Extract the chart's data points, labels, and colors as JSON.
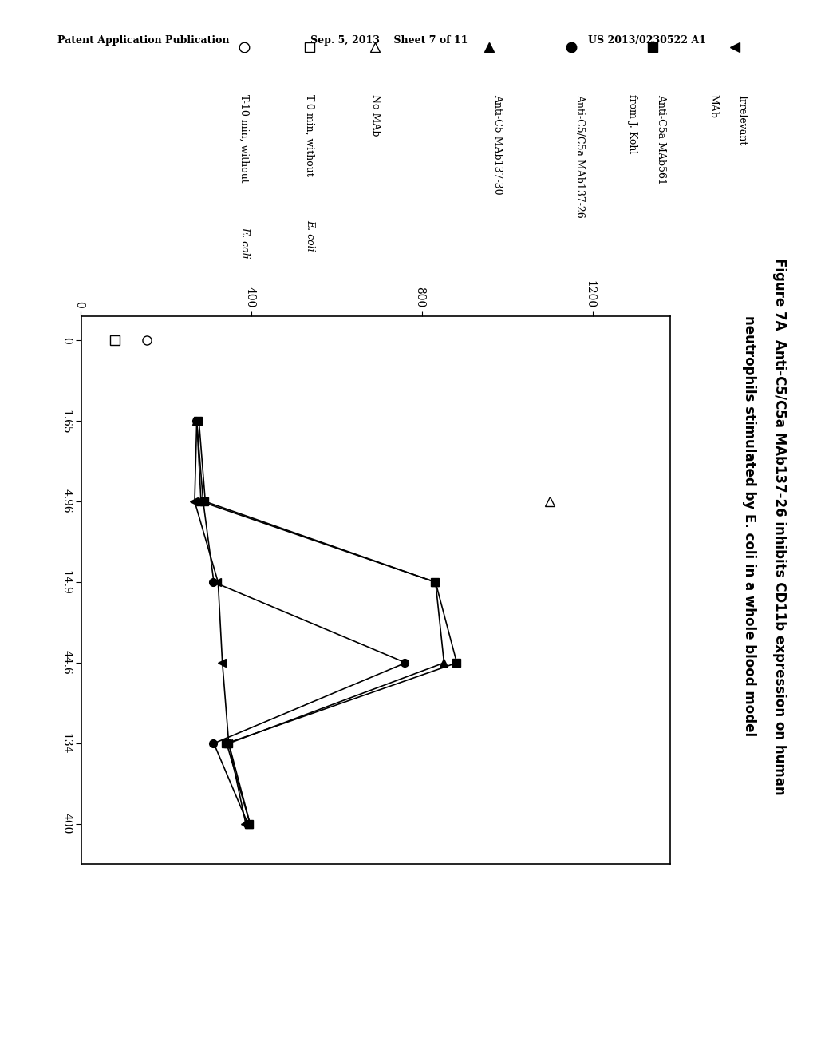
{
  "header_left": "Patent Application Publication",
  "header_mid": "Sep. 5, 2013    Sheet 7 of 11",
  "header_right": "US 2013/0230522 A1",
  "title_line1": "Figure 7A  Anti-C5/C5a MAb137-26 inhibits CD11b expression on human",
  "title_line2": "neutrophils stimulated by E. coli in a whole blood model",
  "x_tick_labels": [
    "0",
    "1.65",
    "4.96",
    "14.9",
    "44.6",
    "134",
    "400"
  ],
  "x_tick_positions": [
    0,
    1,
    2,
    3,
    4,
    5,
    6
  ],
  "y_ticks": [
    0,
    400,
    800,
    1200
  ],
  "y_tick_labels": [
    "0",
    "400",
    "800",
    "1200"
  ],
  "ylim": [
    0,
    1380
  ],
  "xlim": [
    -0.3,
    6.5
  ],
  "series": [
    {
      "name": "Irrelevant MAb",
      "marker": "v",
      "filled": true,
      "x_idx": [
        1,
        2,
        3,
        4,
        5,
        6
      ],
      "y": [
        270,
        265,
        320,
        330,
        345,
        385
      ]
    },
    {
      "name": "Anti-C5a MAb561 from J. Kohl",
      "marker": "s",
      "filled": true,
      "x_idx": [
        1,
        2,
        3,
        4,
        5,
        6
      ],
      "y": [
        275,
        290,
        830,
        880,
        340,
        395
      ]
    },
    {
      "name": "Anti-C5/C5a MAb137-26",
      "marker": "o",
      "filled": true,
      "x_idx": [
        1,
        2,
        3,
        4,
        5,
        6
      ],
      "y": [
        270,
        285,
        310,
        760,
        310,
        390
      ]
    },
    {
      "name": "Anti-C5 MAb137-30",
      "marker": "<",
      "filled": true,
      "x_idx": [
        1,
        2,
        3,
        4,
        5,
        6
      ],
      "y": [
        270,
        280,
        830,
        850,
        345,
        395
      ]
    }
  ],
  "single_points": [
    {
      "name": "No MAb",
      "marker": "<",
      "filled": false,
      "x_idx": 2,
      "y": 1100
    },
    {
      "name": "T-0 min, without E. coli",
      "marker": "s",
      "filled": false,
      "x_idx": 0,
      "y": 80
    },
    {
      "name": "T-10 min, without E. coli",
      "marker": "o",
      "filled": false,
      "x_idx": 0,
      "y": 155
    }
  ],
  "legend_items1": [
    {
      "marker": "v",
      "filled": true,
      "label1": "Irrelevant",
      "label2": "MAb"
    },
    {
      "marker": "s",
      "filled": true,
      "label1": "Anti-C5a MAb561",
      "label2": "from J. Kohl"
    },
    {
      "marker": "o",
      "filled": true,
      "label1": "Anti-C5/C5a MAb137-26",
      "label2": ""
    },
    {
      "marker": "<",
      "filled": true,
      "label1": "Anti-C5 MAb137-30",
      "label2": ""
    }
  ],
  "legend_items2": [
    {
      "marker": "<",
      "filled": false,
      "label": "No MAb",
      "ecoli": false
    },
    {
      "marker": "s",
      "filled": false,
      "label": "T-0 min, without ",
      "ecoli": true,
      "after": ""
    },
    {
      "marker": "o",
      "filled": false,
      "label": "T-10 min, without ",
      "ecoli": true,
      "after": ""
    }
  ],
  "background_color": "#ffffff"
}
